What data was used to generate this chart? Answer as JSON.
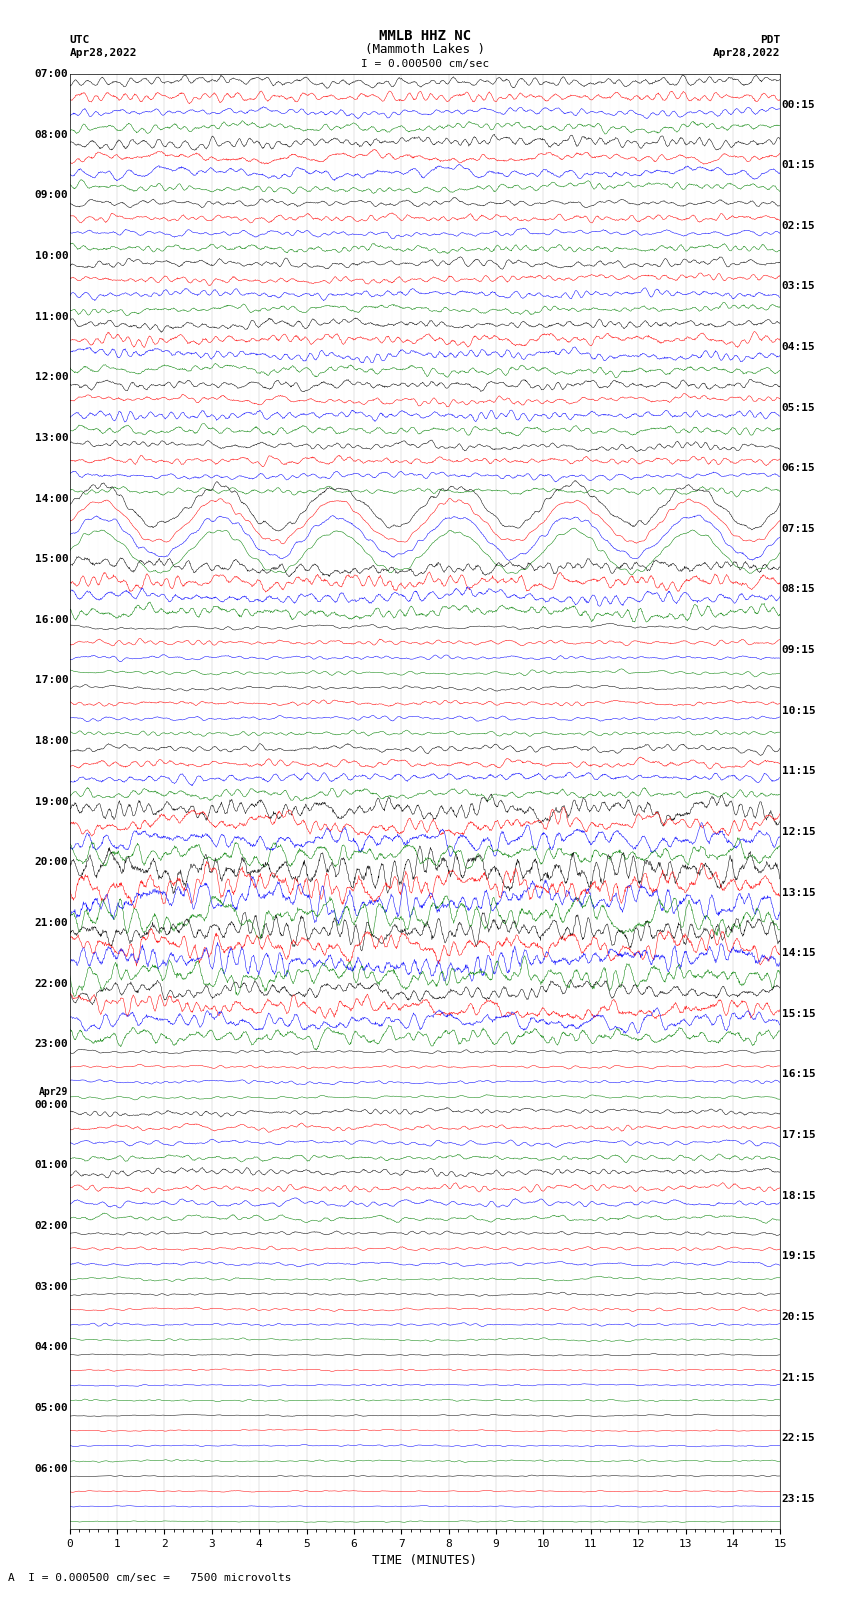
{
  "title_line1": "MMLB HHZ NC",
  "title_line2": "(Mammoth Lakes )",
  "scale_label": "I = 0.000500 cm/sec",
  "bottom_label": "A  I = 0.000500 cm/sec =   7500 microvolts",
  "xlabel": "TIME (MINUTES)",
  "utc_label": "UTC",
  "utc_date": "Apr28,2022",
  "pdt_label": "PDT",
  "pdt_date": "Apr28,2022",
  "left_times": [
    "07:00",
    "08:00",
    "09:00",
    "10:00",
    "11:00",
    "12:00",
    "13:00",
    "14:00",
    "15:00",
    "16:00",
    "17:00",
    "18:00",
    "19:00",
    "20:00",
    "21:00",
    "22:00",
    "23:00",
    "Apr29\n00:00",
    "01:00",
    "02:00",
    "03:00",
    "04:00",
    "05:00",
    "06:00"
  ],
  "right_times": [
    "00:15",
    "01:15",
    "02:15",
    "03:15",
    "04:15",
    "05:15",
    "06:15",
    "07:15",
    "08:15",
    "09:15",
    "10:15",
    "11:15",
    "12:15",
    "13:15",
    "14:15",
    "15:15",
    "16:15",
    "17:15",
    "18:15",
    "19:15",
    "20:15",
    "21:15",
    "22:15",
    "23:15"
  ],
  "colors": [
    "black",
    "red",
    "blue",
    "green"
  ],
  "bg_color": "white",
  "n_rows": 96,
  "n_pts": 1500,
  "xmin": 0,
  "xmax": 15,
  "figwidth": 8.5,
  "figheight": 16.13,
  "dpi": 100,
  "amplitude_profile": [
    1.0,
    1.0,
    1.0,
    1.0,
    1.2,
    1.2,
    1.2,
    1.2,
    0.8,
    0.8,
    0.8,
    0.8,
    1.0,
    1.0,
    1.0,
    1.0,
    1.2,
    1.2,
    1.2,
    1.2,
    1.0,
    1.0,
    1.0,
    1.0,
    0.9,
    0.9,
    0.9,
    0.9,
    3.0,
    2.5,
    2.5,
    2.0,
    1.5,
    1.5,
    1.5,
    1.5,
    0.6,
    0.6,
    0.6,
    0.6,
    0.5,
    0.5,
    0.5,
    0.5,
    1.0,
    1.0,
    1.0,
    1.0,
    2.5,
    2.5,
    2.5,
    2.5,
    3.5,
    3.5,
    3.5,
    3.5,
    3.0,
    3.0,
    3.0,
    3.0,
    2.0,
    2.0,
    2.0,
    2.0,
    0.4,
    0.4,
    0.4,
    0.4,
    0.7,
    0.7,
    0.7,
    0.7,
    0.8,
    0.8,
    0.8,
    0.8,
    0.4,
    0.4,
    0.4,
    0.4,
    0.3,
    0.3,
    0.3,
    0.3,
    0.2,
    0.2,
    0.2,
    0.2,
    0.2,
    0.2,
    0.2,
    0.2,
    0.15,
    0.15,
    0.15,
    0.15
  ]
}
